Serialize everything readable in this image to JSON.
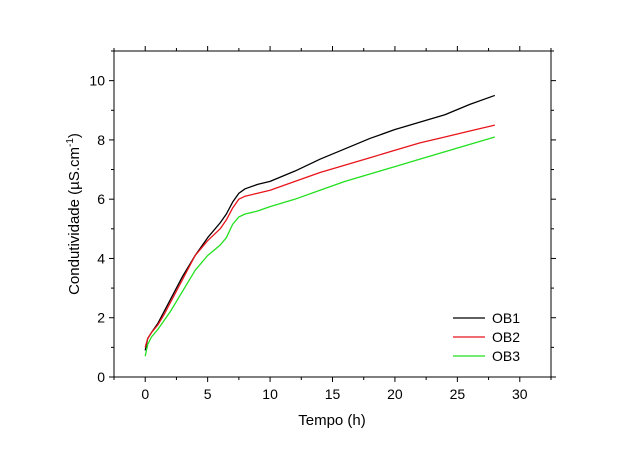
{
  "chart_data": {
    "type": "line",
    "title": "",
    "xlabel": "Tempo (h)",
    "ylabel_main": "Condutividade (",
    "ylabel_mu": "µ",
    "ylabel_rest": "S.cm",
    "ylabel_exp": "-1",
    "ylabel_close": ")",
    "xlim": [
      -2.5,
      32.5
    ],
    "ylim": [
      0,
      11
    ],
    "xticks": [
      0,
      5,
      10,
      15,
      20,
      25,
      30
    ],
    "xtick_labels": [
      "0",
      "5",
      "10",
      "15",
      "20",
      "25",
      "30"
    ],
    "yticks": [
      0,
      2,
      4,
      6,
      8,
      10
    ],
    "ytick_labels": [
      "0",
      "2",
      "4",
      "6",
      "8",
      "10"
    ],
    "grid": false,
    "legend_position": "bottom-right",
    "series": [
      {
        "name": "OB1",
        "color": "#000000",
        "x": [
          0,
          0.2,
          0.5,
          1,
          1.5,
          2,
          3,
          4,
          5,
          6,
          6.5,
          7,
          7.5,
          8,
          9,
          10,
          12,
          14,
          16,
          18,
          20,
          22,
          24,
          26,
          28
        ],
        "y": [
          0.9,
          1.3,
          1.5,
          1.8,
          2.2,
          2.6,
          3.4,
          4.1,
          4.7,
          5.2,
          5.5,
          5.9,
          6.2,
          6.35,
          6.5,
          6.6,
          6.95,
          7.35,
          7.7,
          8.05,
          8.35,
          8.6,
          8.85,
          9.2,
          9.5
        ]
      },
      {
        "name": "OB2",
        "color": "#e8141b",
        "x": [
          0,
          0.2,
          0.5,
          1,
          1.5,
          2,
          3,
          4,
          5,
          6,
          6.5,
          7,
          7.5,
          8,
          9,
          10,
          12,
          14,
          16,
          18,
          20,
          22,
          24,
          26,
          28
        ],
        "y": [
          1.0,
          1.3,
          1.5,
          1.75,
          2.1,
          2.5,
          3.3,
          4.1,
          4.6,
          5.0,
          5.3,
          5.7,
          6.0,
          6.1,
          6.2,
          6.3,
          6.6,
          6.9,
          7.15,
          7.4,
          7.65,
          7.9,
          8.1,
          8.3,
          8.5
        ]
      },
      {
        "name": "OB3",
        "color": "#22e01e",
        "x": [
          0,
          0.2,
          0.5,
          1,
          1.5,
          2,
          3,
          4,
          5,
          6,
          6.5,
          7,
          7.5,
          8,
          9,
          10,
          12,
          14,
          16,
          18,
          20,
          22,
          24,
          26,
          28
        ],
        "y": [
          0.7,
          1.1,
          1.35,
          1.6,
          1.9,
          2.2,
          2.9,
          3.6,
          4.1,
          4.45,
          4.7,
          5.15,
          5.4,
          5.5,
          5.6,
          5.75,
          6.0,
          6.3,
          6.6,
          6.85,
          7.1,
          7.35,
          7.6,
          7.85,
          8.1
        ]
      }
    ]
  }
}
